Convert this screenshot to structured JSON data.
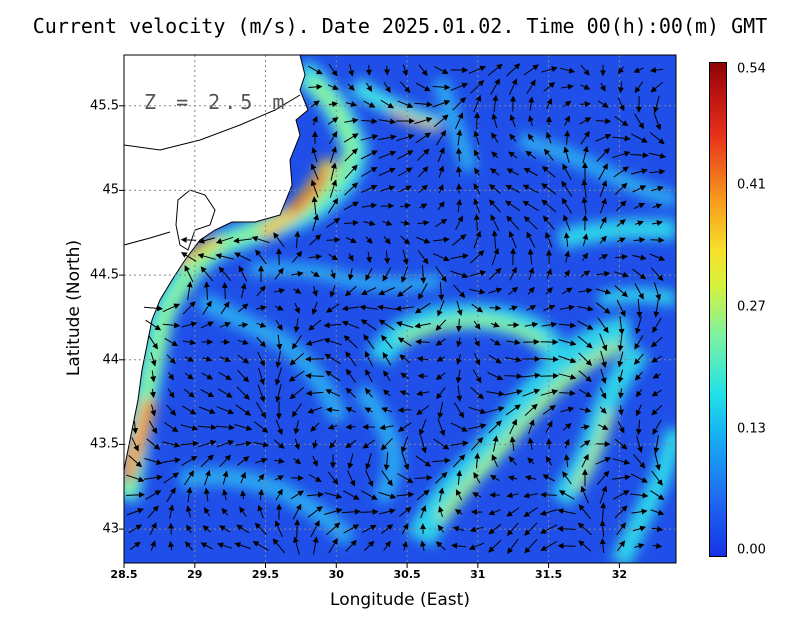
{
  "title": "Current velocity (m/s). Date 2025.01.02. Time 00(h):00(m) GMT",
  "depth_label": "Z = 2.5 m",
  "axes": {
    "xlabel": "Longitude (East)",
    "ylabel": "Latitude (North)",
    "x_range": [
      28.5,
      32.4
    ],
    "y_range": [
      42.8,
      45.8
    ],
    "x_ticks": [
      "28.5",
      "29",
      "29.5",
      "30",
      "30.5",
      "31",
      "31.5",
      "32"
    ],
    "y_ticks": [
      "43",
      "43.5",
      "44",
      "44.5",
      "45",
      "45.5"
    ]
  },
  "colorbar": {
    "ticks": [
      "0.54",
      "0.41",
      "0.27",
      "0.13",
      "0.00"
    ],
    "range": [
      0.0,
      0.54
    ],
    "colors": [
      "#1434e6",
      "#16b3f2",
      "#7ff29d",
      "#f6e02a",
      "#e8331c",
      "#8a0606"
    ]
  },
  "map": {
    "grid": "dotted",
    "land_color": "#ffffff",
    "sea_base_color": "#1f4fe8"
  }
}
